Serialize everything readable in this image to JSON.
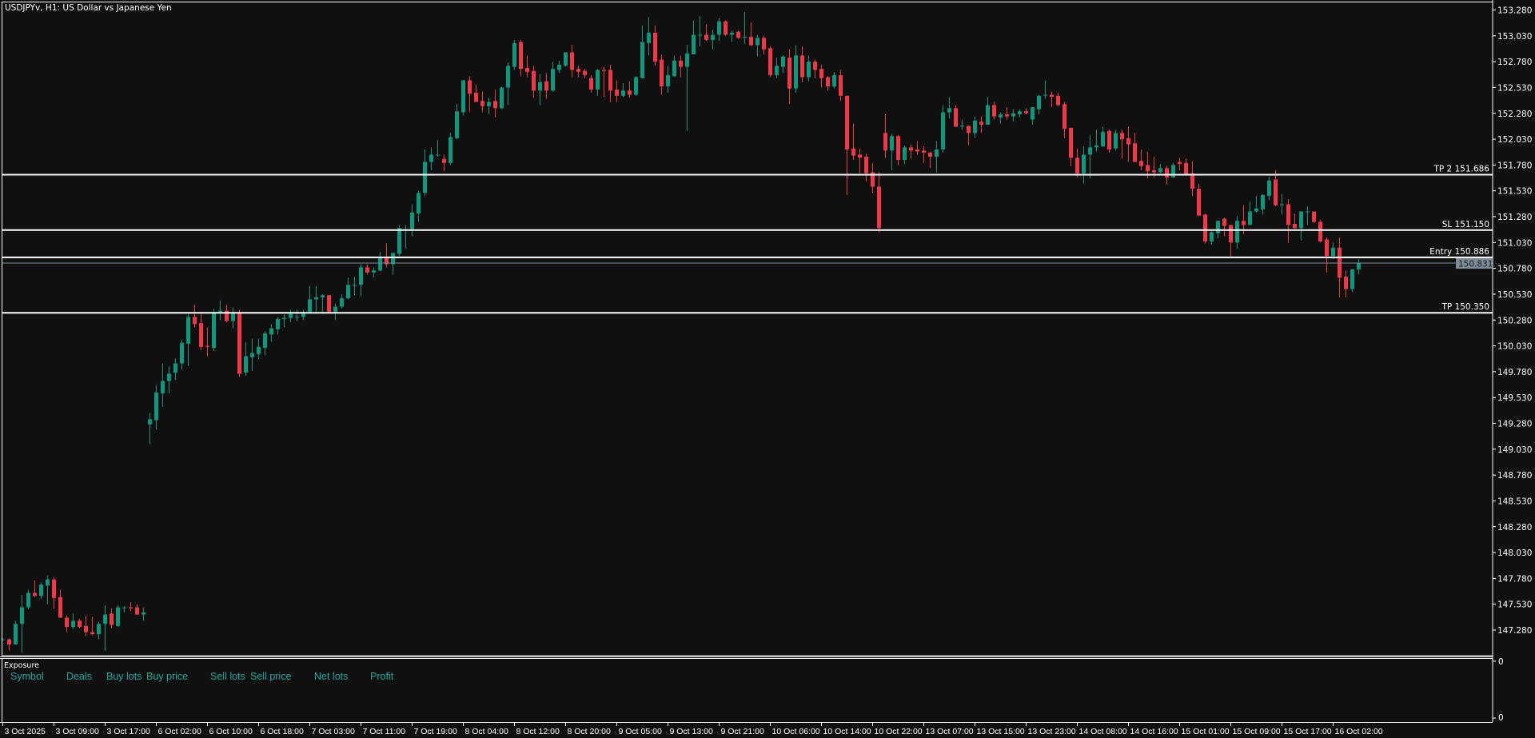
{
  "window": {
    "title": "USDJPYv, H1:  US Dollar vs Japanese Yen"
  },
  "colors": {
    "background": "#101010",
    "bull": "#089981",
    "bear": "#f23645",
    "level_line": "#ffffff",
    "bid_line": "#7d8a97",
    "bid_label_bg": "#7d8a97",
    "axis": "#ffffff",
    "exposure_header": "#20a8a0"
  },
  "exposure": {
    "title": "Exposure",
    "columns": [
      "Symbol",
      "Deals",
      "Buy lots",
      "Buy price",
      "Sell lots",
      "Sell price",
      "Net lots",
      "Profit"
    ],
    "axis_labels": [
      "0",
      "0"
    ]
  },
  "chart_data": {
    "type": "candlestick",
    "symbol": "USDJPYv",
    "timeframe": "H1",
    "description": "US Dollar vs Japanese Yen",
    "ylim": [
      147.1,
      153.35
    ],
    "grid": false,
    "y_ticks": [
      "153.280",
      "153.030",
      "152.780",
      "152.530",
      "152.280",
      "152.030",
      "151.780",
      "151.530",
      "151.280",
      "151.030",
      "150.780",
      "150.530",
      "150.280",
      "150.030",
      "149.780",
      "149.530",
      "149.280",
      "149.030",
      "148.780",
      "148.530",
      "148.280",
      "148.030",
      "147.780",
      "147.530",
      "147.280"
    ],
    "x_tick_every_bars": 8,
    "x_tick_labels": [
      "3 Oct 2025",
      "3 Oct 09:00",
      "3 Oct 17:00",
      "6 Oct 02:00",
      "6 Oct 10:00",
      "6 Oct 18:00",
      "7 Oct 03:00",
      "7 Oct 11:00",
      "7 Oct 19:00",
      "8 Oct 04:00",
      "8 Oct 12:00",
      "8 Oct 20:00",
      "9 Oct 05:00",
      "9 Oct 13:00",
      "9 Oct 21:00",
      "10 Oct 06:00",
      "10 Oct 14:00",
      "10 Oct 22:00",
      "13 Oct 07:00",
      "13 Oct 15:00",
      "13 Oct 23:00",
      "14 Oct 08:00",
      "14 Oct 16:00",
      "15 Oct 01:00",
      "15 Oct 09:00",
      "15 Oct 17:00",
      "16 Oct 02:00"
    ],
    "levels": [
      {
        "label": "TP 2 151.686",
        "price": 151.686
      },
      {
        "label": "SL 151.150",
        "price": 151.15
      },
      {
        "label": "Entry 150.886",
        "price": 150.886
      },
      {
        "label": "TP 150.350",
        "price": 150.35
      }
    ],
    "bid": {
      "price": 150.831,
      "label": "150.831"
    },
    "candles_ohlc": [
      [
        147.19,
        147.2,
        147.18,
        147.19
      ],
      [
        147.19,
        147.2,
        147.08,
        147.14
      ],
      [
        147.14,
        147.37,
        147.14,
        147.34
      ],
      [
        147.34,
        147.62,
        147.06,
        147.5
      ],
      [
        147.5,
        147.67,
        147.48,
        147.64
      ],
      [
        147.64,
        147.76,
        147.6,
        147.61
      ],
      [
        147.61,
        147.74,
        147.58,
        147.72
      ],
      [
        147.71,
        147.81,
        147.53,
        147.77
      ],
      [
        147.77,
        147.79,
        147.49,
        147.59
      ],
      [
        147.6,
        147.67,
        147.4,
        147.4
      ],
      [
        147.4,
        147.42,
        147.26,
        147.31
      ],
      [
        147.31,
        147.44,
        147.29,
        147.37
      ],
      [
        147.37,
        147.39,
        147.3,
        147.31
      ],
      [
        147.32,
        147.42,
        147.22,
        147.26
      ],
      [
        147.26,
        147.41,
        147.23,
        147.24
      ],
      [
        147.24,
        147.36,
        147.19,
        147.34
      ],
      [
        147.34,
        147.52,
        147.08,
        147.43
      ],
      [
        147.44,
        147.49,
        147.3,
        147.33
      ],
      [
        147.32,
        147.52,
        147.31,
        147.5
      ],
      [
        147.5,
        147.51,
        147.45,
        147.5
      ],
      [
        147.5,
        147.55,
        147.46,
        147.49
      ],
      [
        147.5,
        147.53,
        147.43,
        147.43
      ],
      [
        147.43,
        147.5,
        147.37,
        147.45
      ],
      [
        149.27,
        149.38,
        149.08,
        149.32
      ],
      [
        149.31,
        149.65,
        149.22,
        149.58
      ],
      [
        149.57,
        149.86,
        149.44,
        149.69
      ],
      [
        149.69,
        149.83,
        149.57,
        149.76
      ],
      [
        149.77,
        149.91,
        149.7,
        149.86
      ],
      [
        149.86,
        150.09,
        149.8,
        150.06
      ],
      [
        150.05,
        150.34,
        149.84,
        150.31
      ],
      [
        150.31,
        150.43,
        150.21,
        150.24
      ],
      [
        150.25,
        150.34,
        149.99,
        150.02
      ],
      [
        150.03,
        150.21,
        149.93,
        150.02
      ],
      [
        150.01,
        150.39,
        149.98,
        150.35
      ],
      [
        150.36,
        150.47,
        150.28,
        150.37
      ],
      [
        150.37,
        150.43,
        150.26,
        150.27
      ],
      [
        150.27,
        150.4,
        150.2,
        150.35
      ],
      [
        150.35,
        150.38,
        149.73,
        149.76
      ],
      [
        149.77,
        150.07,
        149.74,
        149.93
      ],
      [
        149.92,
        150.1,
        149.79,
        149.96
      ],
      [
        149.95,
        150.1,
        149.9,
        150.02
      ],
      [
        150.01,
        150.17,
        149.94,
        150.15
      ],
      [
        150.14,
        150.24,
        150.07,
        150.2
      ],
      [
        150.19,
        150.31,
        150.14,
        150.29
      ],
      [
        150.29,
        150.33,
        150.21,
        150.3
      ],
      [
        150.3,
        150.38,
        150.26,
        150.34
      ],
      [
        150.31,
        150.38,
        150.27,
        150.31
      ],
      [
        150.31,
        150.38,
        150.28,
        150.34
      ],
      [
        150.36,
        150.61,
        150.36,
        150.48
      ],
      [
        150.48,
        150.61,
        150.36,
        150.5
      ],
      [
        150.5,
        150.53,
        150.34,
        150.52
      ],
      [
        150.52,
        150.52,
        150.36,
        150.36
      ],
      [
        150.36,
        150.44,
        150.28,
        150.41
      ],
      [
        150.41,
        150.53,
        150.39,
        150.49
      ],
      [
        150.49,
        150.69,
        150.48,
        150.62
      ],
      [
        150.62,
        150.7,
        150.52,
        150.62
      ],
      [
        150.62,
        150.82,
        150.51,
        150.79
      ],
      [
        150.79,
        150.82,
        150.72,
        150.74
      ],
      [
        150.74,
        150.79,
        150.69,
        150.76
      ],
      [
        150.76,
        150.94,
        150.75,
        150.88
      ],
      [
        150.89,
        151.02,
        150.79,
        150.82
      ],
      [
        150.82,
        150.93,
        150.72,
        150.93
      ],
      [
        150.92,
        151.2,
        150.9,
        151.17
      ],
      [
        151.16,
        151.2,
        150.97,
        151.16
      ],
      [
        151.16,
        151.4,
        151.09,
        151.32
      ],
      [
        151.31,
        151.53,
        151.23,
        151.51
      ],
      [
        151.51,
        151.93,
        151.48,
        151.81
      ],
      [
        151.81,
        151.95,
        151.73,
        151.88
      ],
      [
        151.88,
        152.02,
        151.86,
        151.88
      ],
      [
        151.84,
        151.88,
        151.72,
        151.8
      ],
      [
        151.8,
        152.09,
        151.78,
        152.05
      ],
      [
        152.04,
        152.37,
        152.03,
        152.3
      ],
      [
        152.29,
        152.6,
        152.26,
        152.6
      ],
      [
        152.6,
        152.64,
        152.29,
        152.47
      ],
      [
        152.48,
        152.56,
        152.39,
        152.39
      ],
      [
        152.4,
        152.49,
        152.29,
        152.35
      ],
      [
        152.35,
        152.43,
        152.27,
        152.39
      ],
      [
        152.4,
        152.51,
        152.24,
        152.33
      ],
      [
        152.33,
        152.54,
        152.32,
        152.53
      ],
      [
        152.53,
        152.77,
        152.36,
        152.74
      ],
      [
        152.73,
        152.99,
        152.7,
        152.96
      ],
      [
        152.97,
        152.99,
        152.64,
        152.71
      ],
      [
        152.72,
        152.84,
        152.63,
        152.68
      ],
      [
        152.69,
        152.74,
        152.43,
        152.5
      ],
      [
        152.5,
        152.66,
        152.36,
        152.58
      ],
      [
        152.59,
        152.67,
        152.42,
        152.5
      ],
      [
        152.5,
        152.78,
        152.49,
        152.71
      ],
      [
        152.7,
        152.79,
        152.67,
        152.75
      ],
      [
        152.74,
        152.87,
        152.73,
        152.87
      ],
      [
        152.87,
        152.94,
        152.63,
        152.7
      ],
      [
        152.71,
        152.74,
        152.63,
        152.68
      ],
      [
        152.69,
        152.71,
        152.62,
        152.65
      ],
      [
        152.62,
        152.65,
        152.48,
        152.51
      ],
      [
        152.51,
        152.71,
        152.45,
        152.7
      ],
      [
        152.7,
        152.73,
        152.44,
        152.69
      ],
      [
        152.7,
        152.75,
        152.39,
        152.5
      ],
      [
        152.51,
        152.6,
        152.39,
        152.45
      ],
      [
        152.45,
        152.57,
        152.44,
        152.5
      ],
      [
        152.5,
        152.59,
        152.43,
        152.46
      ],
      [
        152.46,
        152.64,
        152.45,
        152.63
      ],
      [
        152.62,
        153.13,
        152.62,
        152.97
      ],
      [
        152.96,
        153.21,
        152.84,
        153.06
      ],
      [
        153.06,
        153.13,
        152.74,
        152.78
      ],
      [
        152.8,
        152.85,
        152.46,
        152.54
      ],
      [
        152.54,
        152.74,
        152.48,
        152.65
      ],
      [
        152.64,
        152.84,
        152.63,
        152.79
      ],
      [
        152.79,
        152.84,
        152.63,
        152.73
      ],
      [
        152.73,
        152.94,
        152.11,
        152.86
      ],
      [
        152.85,
        153.18,
        152.85,
        153.04
      ],
      [
        153.04,
        153.22,
        152.93,
        153.04
      ],
      [
        153.04,
        153.14,
        152.98,
        152.99
      ],
      [
        152.99,
        153.09,
        152.9,
        153.04
      ],
      [
        153.04,
        153.2,
        152.98,
        153.17
      ],
      [
        153.17,
        153.18,
        153.03,
        153.04
      ],
      [
        153.04,
        153.08,
        152.97,
        153.06
      ],
      [
        153.07,
        153.08,
        153.0,
        153.01
      ],
      [
        153.02,
        153.26,
        152.95,
        153.02
      ],
      [
        153.02,
        153.16,
        152.93,
        152.94
      ],
      [
        152.94,
        153.04,
        152.83,
        153.01
      ],
      [
        153.01,
        153.03,
        152.85,
        152.9
      ],
      [
        152.91,
        152.93,
        152.63,
        152.65
      ],
      [
        152.65,
        152.82,
        152.62,
        152.74
      ],
      [
        152.73,
        152.84,
        152.67,
        152.83
      ],
      [
        152.82,
        152.9,
        152.37,
        152.52
      ],
      [
        152.52,
        152.94,
        152.48,
        152.84
      ],
      [
        152.84,
        152.93,
        152.58,
        152.63
      ],
      [
        152.63,
        152.84,
        152.59,
        152.78
      ],
      [
        152.78,
        152.8,
        152.62,
        152.7
      ],
      [
        152.71,
        152.75,
        152.53,
        152.62
      ],
      [
        152.63,
        152.64,
        152.5,
        152.54
      ],
      [
        152.54,
        152.68,
        152.52,
        152.65
      ],
      [
        152.65,
        152.7,
        152.4,
        152.45
      ],
      [
        152.45,
        152.45,
        151.49,
        151.93
      ],
      [
        151.94,
        152.18,
        151.83,
        151.87
      ],
      [
        151.88,
        151.94,
        151.7,
        151.85
      ],
      [
        151.86,
        151.89,
        151.62,
        151.7
      ],
      [
        151.71,
        151.8,
        151.51,
        151.57
      ],
      [
        151.57,
        151.71,
        151.13,
        151.17
      ],
      [
        152.09,
        152.27,
        151.85,
        151.92
      ],
      [
        151.92,
        152.08,
        151.73,
        152.06
      ],
      [
        152.06,
        152.07,
        151.78,
        151.83
      ],
      [
        151.83,
        151.97,
        151.79,
        151.95
      ],
      [
        151.95,
        151.98,
        151.84,
        151.92
      ],
      [
        151.93,
        152.01,
        151.88,
        151.91
      ],
      [
        151.92,
        151.96,
        151.8,
        151.9
      ],
      [
        151.9,
        151.91,
        151.75,
        151.86
      ],
      [
        151.86,
        152.01,
        151.71,
        151.93
      ],
      [
        151.93,
        152.36,
        151.9,
        152.29
      ],
      [
        152.29,
        152.44,
        152.23,
        152.33
      ],
      [
        152.33,
        152.36,
        152.15,
        152.15
      ],
      [
        152.16,
        152.22,
        152.12,
        152.16
      ],
      [
        152.16,
        152.16,
        151.97,
        152.09
      ],
      [
        152.09,
        152.25,
        152.04,
        152.21
      ],
      [
        152.2,
        152.25,
        152.09,
        152.17
      ],
      [
        152.17,
        152.44,
        152.17,
        152.36
      ],
      [
        152.36,
        152.39,
        152.22,
        152.25
      ],
      [
        152.24,
        152.29,
        152.18,
        152.27
      ],
      [
        152.27,
        152.34,
        152.22,
        152.25
      ],
      [
        152.25,
        152.32,
        152.2,
        152.28
      ],
      [
        152.27,
        152.32,
        152.24,
        152.3
      ],
      [
        152.3,
        152.33,
        152.27,
        152.28
      ],
      [
        152.22,
        152.34,
        152.17,
        152.34
      ],
      [
        152.32,
        152.46,
        152.27,
        152.45
      ],
      [
        152.46,
        152.6,
        152.42,
        152.46
      ],
      [
        152.46,
        152.49,
        152.34,
        152.44
      ],
      [
        152.45,
        152.48,
        152.35,
        152.36
      ],
      [
        152.37,
        152.39,
        152.04,
        152.13
      ],
      [
        152.14,
        152.14,
        151.77,
        151.85
      ],
      [
        151.85,
        151.94,
        151.66,
        151.7
      ],
      [
        151.7,
        151.96,
        151.6,
        151.88
      ],
      [
        151.88,
        152.07,
        151.65,
        151.95
      ],
      [
        151.95,
        152.12,
        151.91,
        151.97
      ],
      [
        151.96,
        152.15,
        151.96,
        152.1
      ],
      [
        152.11,
        152.12,
        151.9,
        151.93
      ],
      [
        151.94,
        152.12,
        151.92,
        152.09
      ],
      [
        152.09,
        152.12,
        151.84,
        152.03
      ],
      [
        152.04,
        152.15,
        151.81,
        151.98
      ],
      [
        151.99,
        152.09,
        151.81,
        151.81
      ],
      [
        151.82,
        151.93,
        151.73,
        151.77
      ],
      [
        151.78,
        151.91,
        151.65,
        151.72
      ],
      [
        151.73,
        151.86,
        151.66,
        151.71
      ],
      [
        151.71,
        151.79,
        151.7,
        151.75
      ],
      [
        151.75,
        151.77,
        151.59,
        151.66
      ],
      [
        151.66,
        151.8,
        151.66,
        151.78
      ],
      [
        151.81,
        151.85,
        151.73,
        151.79
      ],
      [
        151.8,
        151.84,
        151.69,
        151.69
      ],
      [
        151.7,
        151.82,
        151.48,
        151.55
      ],
      [
        151.55,
        151.6,
        151.29,
        151.29
      ],
      [
        151.3,
        151.31,
        151.02,
        151.04
      ],
      [
        151.04,
        151.14,
        151.01,
        151.13
      ],
      [
        151.12,
        151.24,
        151.07,
        151.24
      ],
      [
        151.26,
        151.27,
        151.09,
        151.19
      ],
      [
        151.2,
        151.2,
        150.89,
        151.03
      ],
      [
        151.03,
        151.29,
        150.97,
        151.24
      ],
      [
        151.24,
        151.39,
        151.11,
        151.2
      ],
      [
        151.2,
        151.43,
        151.2,
        151.33
      ],
      [
        151.33,
        151.48,
        151.32,
        151.36
      ],
      [
        151.35,
        151.5,
        151.3,
        151.49
      ],
      [
        151.48,
        151.67,
        151.44,
        151.63
      ],
      [
        151.64,
        151.73,
        151.38,
        151.39
      ],
      [
        151.4,
        151.5,
        151.3,
        151.4
      ],
      [
        151.4,
        151.45,
        151.03,
        151.2
      ],
      [
        151.21,
        151.31,
        151.16,
        151.17
      ],
      [
        151.17,
        151.33,
        151.05,
        151.33
      ],
      [
        151.33,
        151.38,
        151.2,
        151.33
      ],
      [
        151.33,
        151.33,
        151.22,
        151.23
      ],
      [
        151.23,
        151.25,
        151.03,
        151.04
      ],
      [
        151.06,
        151.08,
        150.74,
        150.9
      ],
      [
        150.9,
        151.03,
        150.87,
        150.98
      ],
      [
        150.98,
        151.08,
        150.5,
        150.69
      ],
      [
        150.7,
        150.76,
        150.5,
        150.58
      ],
      [
        150.58,
        150.77,
        150.55,
        150.77
      ],
      [
        150.77,
        150.87,
        150.72,
        150.831
      ]
    ]
  }
}
